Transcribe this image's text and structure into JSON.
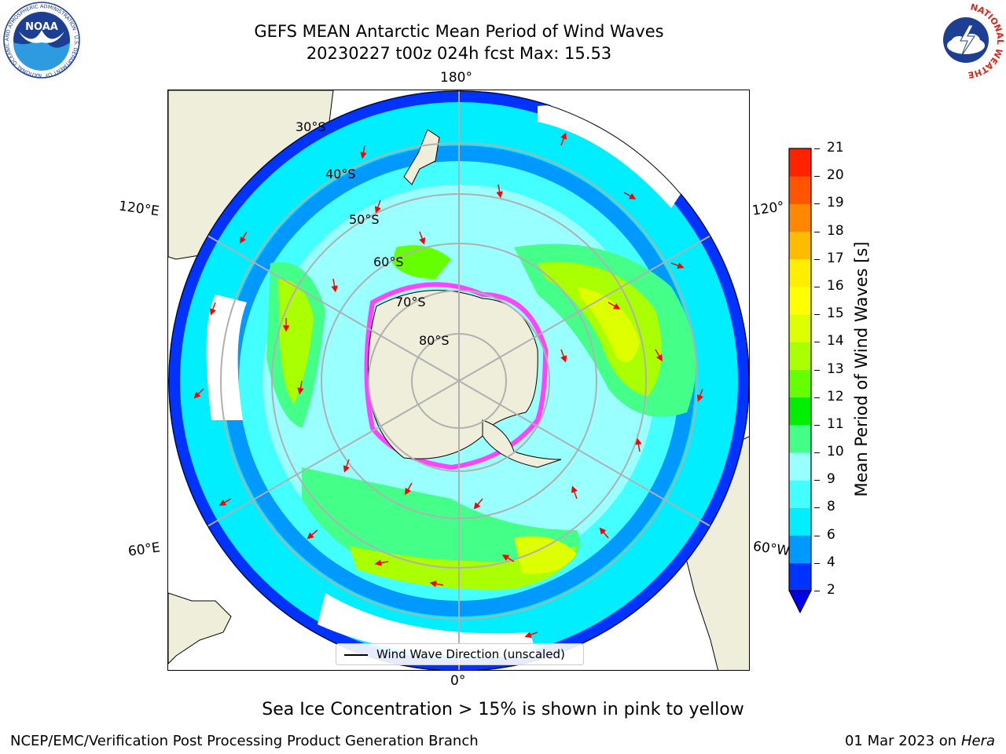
{
  "header": {
    "title_line1": "GEFS MEAN Antarctic Mean Period of Wind Waves",
    "title_line2": "20230227 t00z 024h fcst   Max: 15.53"
  },
  "logos": {
    "noaa": {
      "center_text": "NOAA",
      "ring_text": "NATIONAL OCEANIC AND ATMOSPHERIC ADMINISTRATION · U.S. DEPARTMENT OF COMMERCE"
    },
    "nws": {
      "ring_text": "NATIONAL WEATHER SERVICE"
    }
  },
  "map": {
    "longitude_labels": {
      "top": "180°",
      "bottom": "0°",
      "upper_left": "120°E",
      "upper_right": "120°",
      "lower_left": "60°E",
      "lower_right": "60°W"
    },
    "latitude_labels": [
      "30°S",
      "40°S",
      "50°S",
      "60°S",
      "70°S",
      "80°S"
    ],
    "colors": {
      "land": "#efeedb",
      "ocean_missing": "#ffffff",
      "arrows": "#ff0000",
      "sea_ice": "#ff44ff"
    }
  },
  "colorbar": {
    "label": "Mean Period of Wind Waves [s]",
    "ticks": [
      "2",
      "4",
      "6",
      "8",
      "9",
      "10",
      "11",
      "12",
      "13",
      "14",
      "15",
      "16",
      "17",
      "18",
      "19",
      "20",
      "21"
    ],
    "colors": [
      "#0033ff",
      "#0099ff",
      "#00eeff",
      "#44ffff",
      "#99ffff",
      "#44ff88",
      "#00ee00",
      "#66ff00",
      "#aaff00",
      "#ddff00",
      "#ffff00",
      "#ffee00",
      "#ffbb00",
      "#ff8800",
      "#ff5500",
      "#ff2200"
    ],
    "extend_color": "#0000ee"
  },
  "legend": {
    "label": "Wind Wave Direction (unscaled)"
  },
  "caption": "Sea Ice Concentration > 15% is shown in pink to yellow",
  "footer": {
    "left": "NCEP/EMC/Verification Post Processing Product Generation Branch",
    "right_date": "01 Mar 2023 on",
    "right_host": "Hera"
  }
}
